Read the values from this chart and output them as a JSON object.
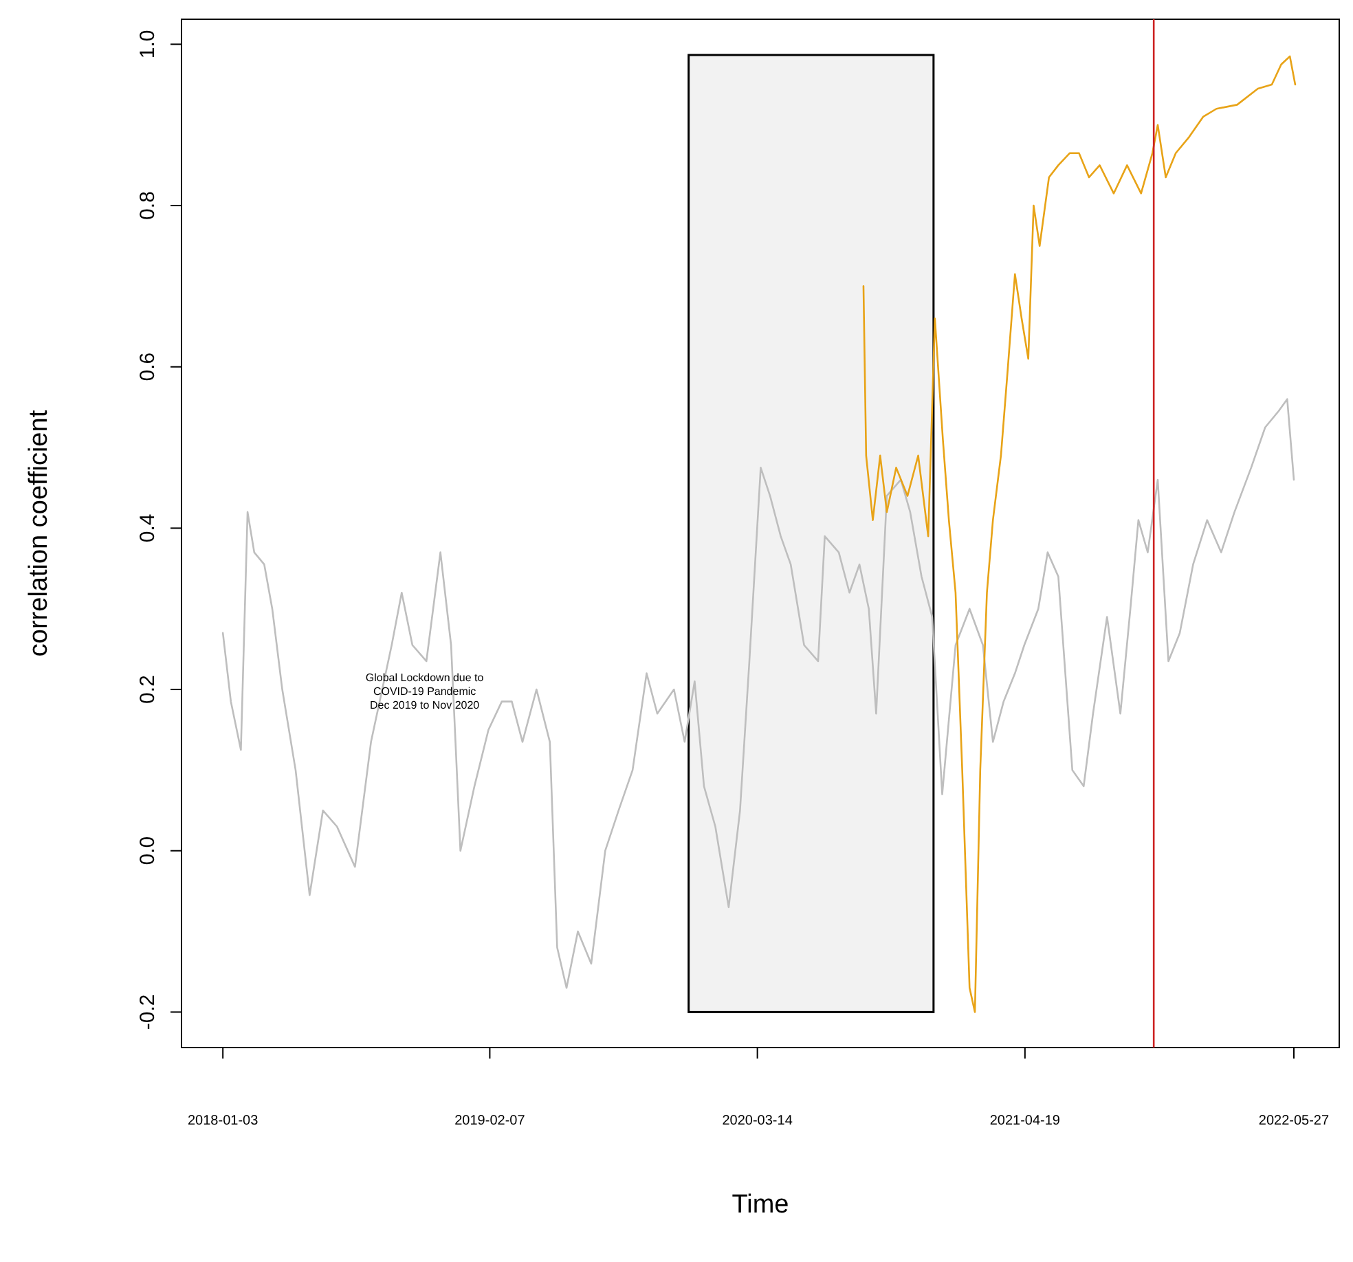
{
  "chart_data": {
    "type": "line",
    "xlabel": "Time",
    "ylabel": "correlation coefficient",
    "xlim": [
      "2017-11-02",
      "2022-08-03"
    ],
    "ylim": [
      -0.244,
      1.031
    ],
    "xticks": [
      "2018-01-03",
      "2019-02-07",
      "2020-03-14",
      "2021-04-19",
      "2022-05-27"
    ],
    "yticks": [
      -0.2,
      {
        "value": 0,
        "label": "0.0"
      },
      0.2,
      0.4,
      0.6,
      0.8,
      {
        "value": 1,
        "label": "1.0"
      }
    ],
    "grid": false,
    "annotations": [
      "Global Lockdown due to\nCOVID-19 Pandemic\nDec 2019 to Nov 2020"
    ],
    "bands": [
      {
        "axis": "x",
        "from": "2019-12-02",
        "to": "2020-12-03",
        "color": "#000000"
      }
    ],
    "ref_lines": [
      {
        "axis": "x",
        "value": "2021-10-29",
        "color": "#cc2222"
      }
    ],
    "series": [
      {
        "color": "#bebebe",
        "x": [
          "2018-01-03",
          "2018-01-15",
          "2018-01-30",
          "2018-02-09",
          "2018-02-19",
          "2018-03-06",
          "2018-03-18",
          "2018-04-02",
          "2018-04-22",
          "2018-05-13",
          "2018-06-02",
          "2018-06-23",
          "2018-07-20",
          "2018-08-13",
          "2018-09-13",
          "2018-09-28",
          "2018-10-14",
          "2018-11-04",
          "2018-11-25",
          "2018-12-11",
          "2018-12-25",
          "2019-01-15",
          "2019-02-05",
          "2019-02-25",
          "2019-03-12",
          "2019-03-28",
          "2019-04-18",
          "2019-05-08",
          "2019-05-19",
          "2019-06-02",
          "2019-06-19",
          "2019-07-09",
          "2019-07-30",
          "2019-08-19",
          "2019-09-09",
          "2019-09-30",
          "2019-10-16",
          "2019-11-10",
          "2019-11-26",
          "2019-12-11",
          "2019-12-25",
          "2020-01-11",
          "2020-01-31",
          "2020-02-17",
          "2020-03-02",
          "2020-03-19",
          "2020-04-02",
          "2020-04-18",
          "2020-05-03",
          "2020-05-23",
          "2020-06-13",
          "2020-06-23",
          "2020-07-14",
          "2020-07-30",
          "2020-08-14",
          "2020-08-28",
          "2020-09-08",
          "2020-09-24",
          "2020-10-15",
          "2020-10-29",
          "2020-11-15",
          "2020-12-01",
          "2020-12-16",
          "2021-01-05",
          "2021-01-26",
          "2021-02-15",
          "2021-03-02",
          "2021-03-18",
          "2021-04-04",
          "2021-04-18",
          "2021-05-09",
          "2021-05-23",
          "2021-06-08",
          "2021-06-29",
          "2021-07-16",
          "2021-07-30",
          "2021-08-20",
          "2021-09-09",
          "2021-09-24",
          "2021-10-06",
          "2021-10-20",
          "2021-11-04",
          "2021-11-20",
          "2021-12-07",
          "2021-12-27",
          "2022-01-17",
          "2022-02-07",
          "2022-02-27",
          "2022-03-24",
          "2022-04-14",
          "2022-05-04",
          "2022-05-17",
          "2022-05-27"
        ],
        "values": [
          0.27,
          0.185,
          0.125,
          0.42,
          0.37,
          0.355,
          0.3,
          0.2,
          0.1,
          -0.055,
          0.05,
          0.03,
          -0.02,
          0.135,
          0.255,
          0.32,
          0.255,
          0.235,
          0.37,
          0.255,
          0,
          0.08,
          0.15,
          0.185,
          0.185,
          0.135,
          0.2,
          0.135,
          -0.12,
          -0.17,
          -0.1,
          -0.14,
          0,
          0.05,
          0.1,
          0.22,
          0.17,
          0.2,
          0.135,
          0.21,
          0.08,
          0.03,
          -0.07,
          0.05,
          0.235,
          0.475,
          0.44,
          0.39,
          0.355,
          0.255,
          0.235,
          0.39,
          0.37,
          0.32,
          0.355,
          0.3,
          0.17,
          0.44,
          0.46,
          0.42,
          0.34,
          0.29,
          0.07,
          0.255,
          0.3,
          0.255,
          0.135,
          0.185,
          0.22,
          0.255,
          0.3,
          0.37,
          0.34,
          0.1,
          0.08,
          0.17,
          0.29,
          0.17,
          0.3,
          0.41,
          0.37,
          0.46,
          0.235,
          0.27,
          0.355,
          0.41,
          0.37,
          0.42,
          0.475,
          0.525,
          0.545,
          0.56,
          0.46
        ]
      },
      {
        "color": "#e8a317",
        "x": [
          "2020-08-20",
          "2020-08-24",
          "2020-09-03",
          "2020-09-14",
          "2020-09-24",
          "2020-10-08",
          "2020-10-25",
          "2020-11-10",
          "2020-11-25",
          "2020-12-05",
          "2020-12-17",
          "2020-12-26",
          "2021-01-05",
          "2021-01-15",
          "2021-01-26",
          "2021-02-03",
          "2021-02-11",
          "2021-02-21",
          "2021-03-02",
          "2021-03-14",
          "2021-03-24",
          "2021-04-04",
          "2021-04-14",
          "2021-04-24",
          "2021-05-02",
          "2021-05-11",
          "2021-05-25",
          "2021-06-08",
          "2021-06-25",
          "2021-07-09",
          "2021-07-24",
          "2021-08-09",
          "2021-08-30",
          "2021-09-19",
          "2021-10-10",
          "2021-10-27",
          "2021-11-04",
          "2021-11-16",
          "2021-12-01",
          "2021-12-21",
          "2022-01-11",
          "2022-01-31",
          "2022-03-03",
          "2022-04-03",
          "2022-04-24",
          "2022-05-08",
          "2022-05-21",
          "2022-05-29"
        ],
        "values": [
          0.7,
          0.49,
          0.41,
          0.49,
          0.42,
          0.475,
          0.44,
          0.49,
          0.39,
          0.66,
          0.51,
          0.41,
          0.32,
          0.1,
          -0.17,
          -0.2,
          0.1,
          0.32,
          0.41,
          0.49,
          0.595,
          0.715,
          0.66,
          0.61,
          0.8,
          0.75,
          0.835,
          0.85,
          0.865,
          0.865,
          0.835,
          0.85,
          0.815,
          0.85,
          0.815,
          0.865,
          0.9,
          0.835,
          0.865,
          0.885,
          0.91,
          0.92,
          0.925,
          0.945,
          0.95,
          0.975,
          0.985,
          0.95
        ]
      }
    ]
  }
}
